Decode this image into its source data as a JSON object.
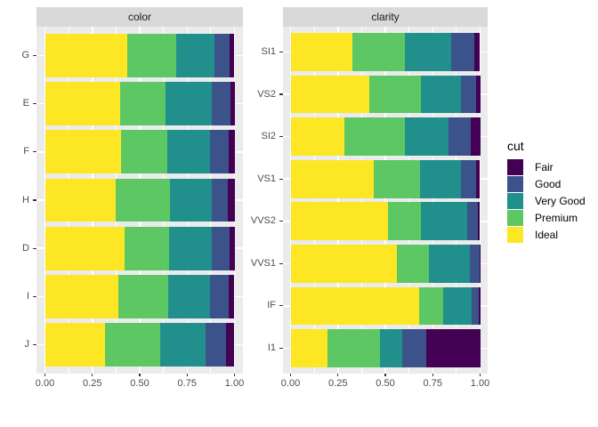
{
  "chart_data": [
    {
      "type": "bar",
      "orientation": "horizontal",
      "stacked": true,
      "position": "fill",
      "facet": "color",
      "x_ticks": [
        "0.00",
        "0.25",
        "0.50",
        "0.75",
        "1.00"
      ],
      "x_range": [
        0,
        1
      ],
      "grid": true,
      "series_order": [
        "Ideal",
        "Premium",
        "Very Good",
        "Good",
        "Fair"
      ],
      "rows": [
        {
          "label": "G",
          "values": [
            0.4325,
            0.2589,
            0.2036,
            0.0771,
            0.0278
          ]
        },
        {
          "label": "E",
          "values": [
            0.3984,
            0.2385,
            0.245,
            0.0952,
            0.0229
          ]
        },
        {
          "label": "F",
          "values": [
            0.401,
            0.2443,
            0.2268,
            0.0953,
            0.0327
          ]
        },
        {
          "label": "H",
          "values": [
            0.3751,
            0.2842,
            0.2197,
            0.0845,
            0.0365
          ]
        },
        {
          "label": "D",
          "values": [
            0.4183,
            0.2366,
            0.2233,
            0.0977,
            0.0241
          ]
        },
        {
          "label": "I",
          "values": [
            0.386,
            0.2634,
            0.2221,
            0.0963,
            0.0323
          ]
        },
        {
          "label": "J",
          "values": [
            0.3191,
            0.2877,
            0.2414,
            0.1093,
            0.0424
          ]
        }
      ]
    },
    {
      "type": "bar",
      "orientation": "horizontal",
      "stacked": true,
      "position": "fill",
      "facet": "clarity",
      "x_ticks": [
        "0.00",
        "0.25",
        "0.50",
        "0.75",
        "1.00"
      ],
      "x_range": [
        0,
        1
      ],
      "grid": true,
      "series_order": [
        "Ideal",
        "Premium",
        "Very Good",
        "Good",
        "Fair"
      ],
      "rows": [
        {
          "label": "SI1",
          "values": [
            0.3277,
            0.2736,
            0.248,
            0.1194,
            0.0312
          ]
        },
        {
          "label": "VS2",
          "values": [
            0.4137,
            0.2739,
            0.2114,
            0.0798,
            0.0213
          ]
        },
        {
          "label": "SI2",
          "values": [
            0.2826,
            0.3208,
            0.2284,
            0.1176,
            0.0507
          ]
        },
        {
          "label": "VS1",
          "values": [
            0.4392,
            0.2434,
            0.2172,
            0.0793,
            0.0208
          ]
        },
        {
          "label": "VVS2",
          "values": [
            0.5144,
            0.1717,
            0.2438,
            0.0565,
            0.0136
          ]
        },
        {
          "label": "VVS1",
          "values": [
            0.56,
            0.1685,
            0.2159,
            0.0509,
            0.0047
          ]
        },
        {
          "label": "IF",
          "values": [
            0.6771,
            0.1285,
            0.1497,
            0.0397,
            0.005
          ]
        },
        {
          "label": "I1",
          "values": [
            0.197,
            0.2767,
            0.1134,
            0.1296,
            0.2834
          ]
        }
      ]
    }
  ],
  "legend": {
    "title": "cut",
    "entries": [
      {
        "label": "Fair",
        "color": "#440154"
      },
      {
        "label": "Good",
        "color": "#3B528B"
      },
      {
        "label": "Very Good",
        "color": "#21908C"
      },
      {
        "label": "Premium",
        "color": "#5DC863"
      },
      {
        "label": "Ideal",
        "color": "#FDE725"
      }
    ]
  },
  "theme": {
    "panel_bg": "#EBEBEB",
    "strip_bg": "#D9D9D9",
    "grid_color": "#FFFFFF",
    "axis_text_color": "#4D4D4D",
    "tick_color": "#333333",
    "strip_text_color": "#1A1A1A"
  }
}
